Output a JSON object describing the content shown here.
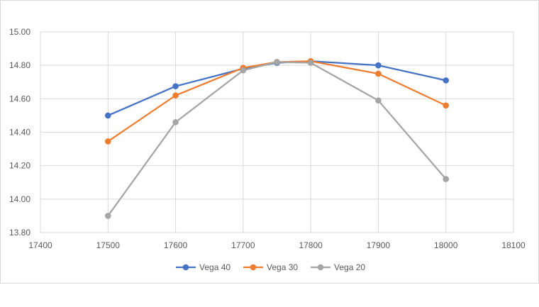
{
  "chart_data": {
    "type": "line",
    "title": "",
    "xlabel": "",
    "ylabel": "",
    "xlim": [
      17400,
      18100
    ],
    "ylim": [
      13.8,
      15.0
    ],
    "x_ticks": [
      17400,
      17500,
      17600,
      17700,
      17800,
      17900,
      18000,
      18100
    ],
    "x_tick_labels": [
      "17400",
      "17500",
      "17600",
      "17700",
      "17800",
      "17900",
      "18000",
      "18100"
    ],
    "y_ticks": [
      13.8,
      14.0,
      14.2,
      14.4,
      14.6,
      14.8,
      15.0
    ],
    "y_tick_labels": [
      "13.80",
      "14.00",
      "14.20",
      "14.40",
      "14.60",
      "14.80",
      "15.00"
    ],
    "grid": true,
    "legend": "bottom",
    "x": [
      17500,
      17600,
      17700,
      17750,
      17800,
      17900,
      18000
    ],
    "series": [
      {
        "name": "Vega 40",
        "color": "#4472c4",
        "values": [
          14.5,
          14.675,
          14.78,
          14.815,
          14.825,
          14.8,
          14.71
        ]
      },
      {
        "name": "Vega 30",
        "color": "#ed7d31",
        "values": [
          14.345,
          14.62,
          14.785,
          14.82,
          14.825,
          14.75,
          14.56
        ]
      },
      {
        "name": "Vega 20",
        "color": "#a5a5a5",
        "values": [
          13.9,
          14.46,
          14.77,
          14.82,
          14.815,
          14.59,
          14.12
        ]
      }
    ]
  }
}
